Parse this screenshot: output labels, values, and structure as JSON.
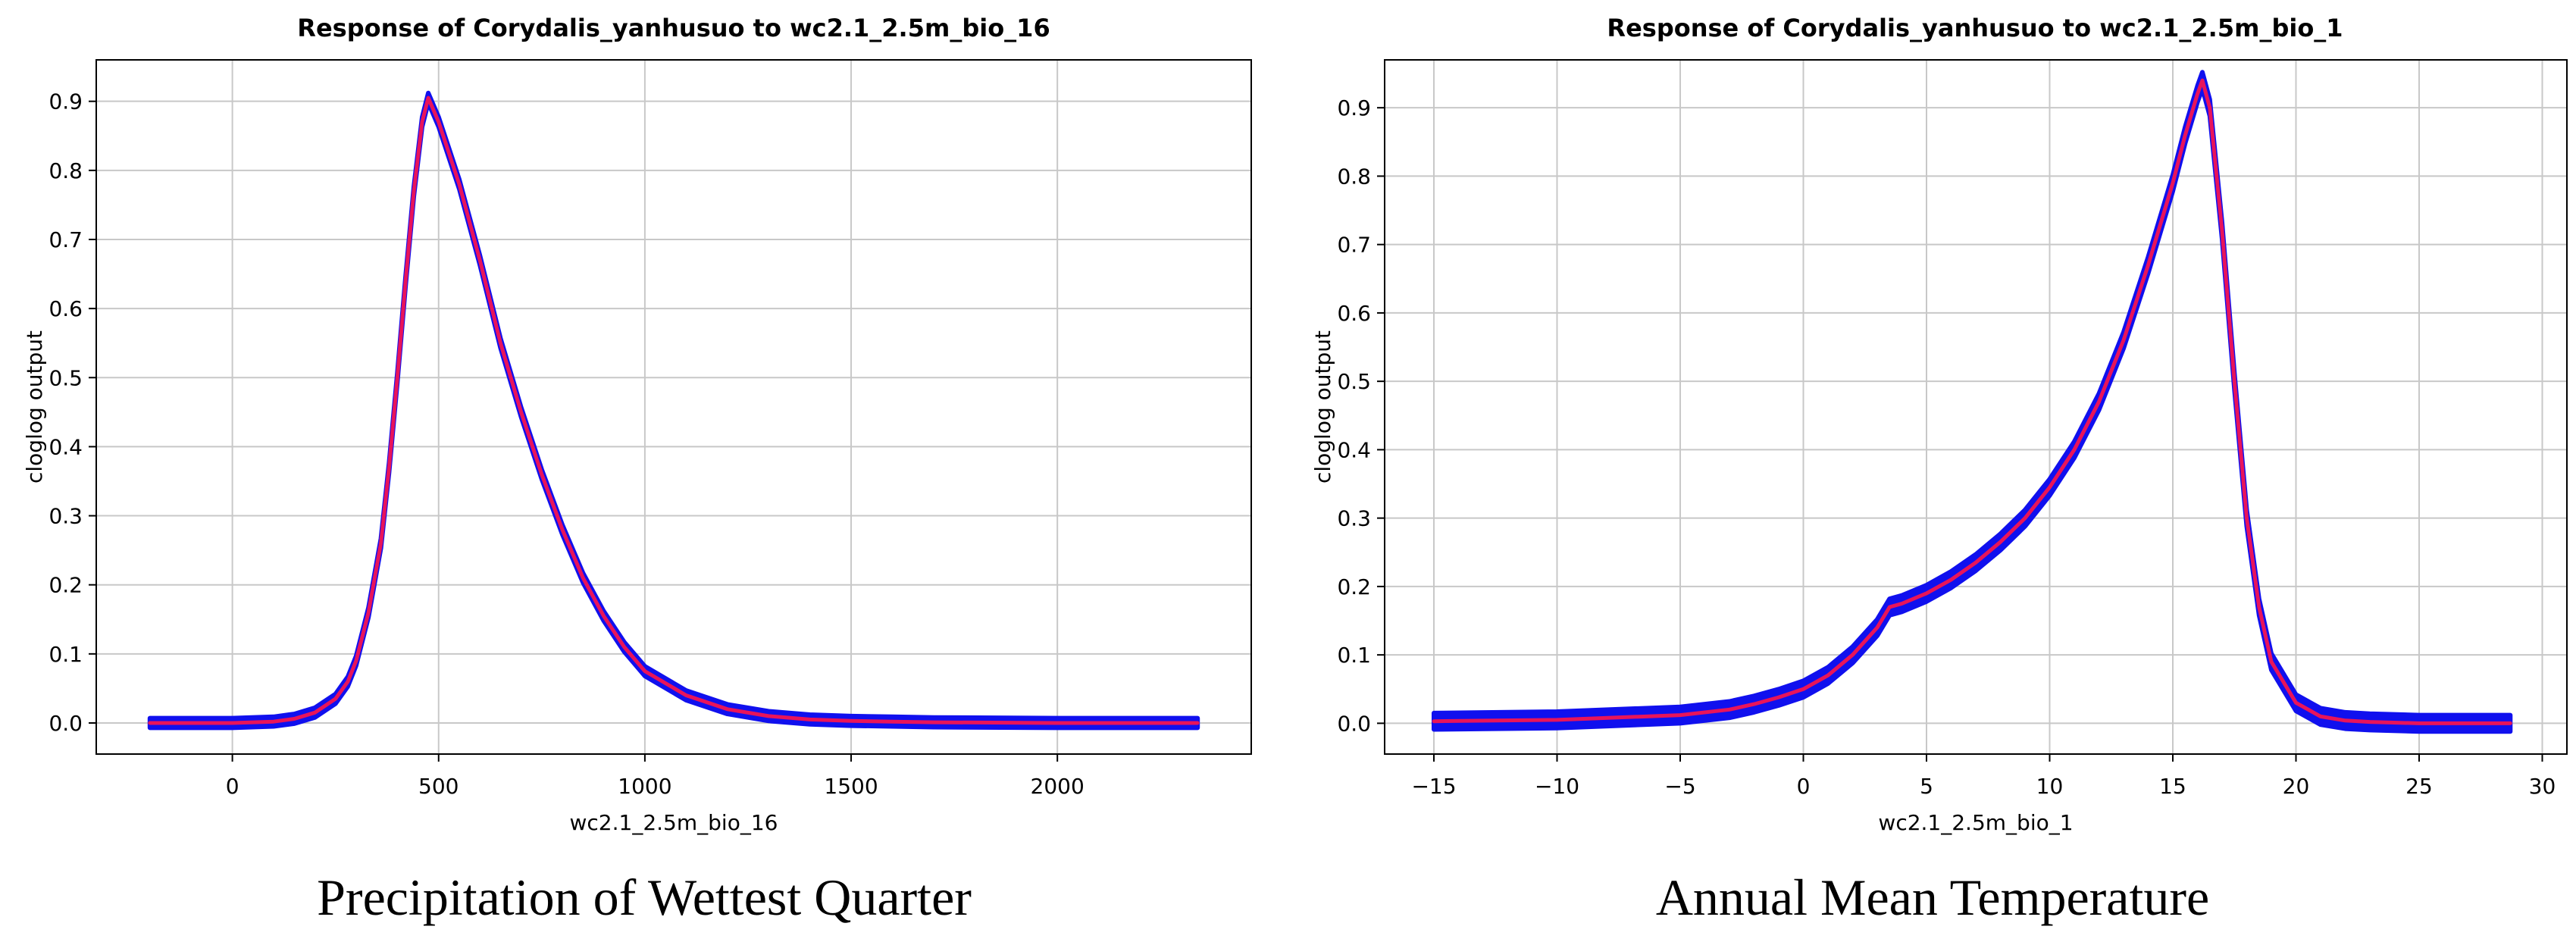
{
  "colors": {
    "band": "#1010ee",
    "mean_line": "#e8145a",
    "grid": "#c8c8c8",
    "axis": "#000000"
  },
  "captions": {
    "left": "Precipitation of Wettest Quarter",
    "right": "Annual Mean Temperature"
  },
  "chart_data": [
    {
      "type": "line",
      "title": "Response of Corydalis_yanhusuo to wc2.1_2.5m_bio_16",
      "xlabel": "wc2.1_2.5m_bio_16",
      "ylabel": "cloglog output",
      "xlim": [
        -330,
        2470
      ],
      "ylim": [
        -0.045,
        0.96
      ],
      "xticks": [
        0,
        500,
        1000,
        1500,
        2000
      ],
      "xtick_labels": [
        "0",
        "500",
        "1000",
        "1500",
        "2000"
      ],
      "yticks": [
        0.0,
        0.1,
        0.2,
        0.3,
        0.4,
        0.5,
        0.6,
        0.7,
        0.8,
        0.9
      ],
      "ytick_labels": [
        "0.0",
        "0.1",
        "0.2",
        "0.3",
        "0.4",
        "0.5",
        "0.6",
        "0.7",
        "0.8",
        "0.9"
      ],
      "grid": true,
      "band_halfwidth": 0.007,
      "series": [
        {
          "x": [
            -200,
            0,
            100,
            150,
            200,
            250,
            280,
            300,
            330,
            360,
            380,
            400,
            420,
            440,
            460,
            475,
            500,
            550,
            600,
            650,
            700,
            750,
            800,
            850,
            900,
            950,
            1000,
            1100,
            1200,
            1300,
            1400,
            1500,
            1600,
            1700,
            2000,
            2340
          ],
          "y": [
            0.0,
            0.0,
            0.002,
            0.006,
            0.015,
            0.035,
            0.06,
            0.09,
            0.16,
            0.26,
            0.37,
            0.5,
            0.64,
            0.77,
            0.87,
            0.905,
            0.87,
            0.78,
            0.67,
            0.55,
            0.45,
            0.36,
            0.28,
            0.21,
            0.155,
            0.11,
            0.075,
            0.04,
            0.02,
            0.01,
            0.005,
            0.003,
            0.002,
            0.001,
            0.0,
            0.0
          ]
        }
      ]
    },
    {
      "type": "line",
      "title": "Response of Corydalis_yanhusuo to wc2.1_2.5m_bio_1",
      "xlabel": "wc2.1_2.5m_bio_1",
      "ylabel": "cloglog output",
      "xlim": [
        -17,
        31
      ],
      "ylim": [
        -0.045,
        0.97
      ],
      "xticks": [
        -15,
        -10,
        -5,
        0,
        5,
        10,
        15,
        20,
        25,
        30
      ],
      "xtick_labels": [
        "−15",
        "−10",
        "−5",
        "0",
        "5",
        "10",
        "15",
        "20",
        "25",
        "30"
      ],
      "yticks": [
        0.0,
        0.1,
        0.2,
        0.3,
        0.4,
        0.5,
        0.6,
        0.7,
        0.8,
        0.9
      ],
      "ytick_labels": [
        "0.0",
        "0.1",
        "0.2",
        "0.3",
        "0.4",
        "0.5",
        "0.6",
        "0.7",
        "0.8",
        "0.9"
      ],
      "grid": true,
      "band_halfwidth": 0.012,
      "series": [
        {
          "x": [
            -15,
            -10,
            -5,
            -3,
            -2,
            -1,
            0,
            1,
            2,
            3,
            3.5,
            4,
            5,
            6,
            7,
            8,
            9,
            10,
            11,
            12,
            13,
            14,
            15,
            15.5,
            16,
            16.2,
            16.5,
            17,
            17.5,
            18,
            18.5,
            19,
            20,
            21,
            22,
            23,
            25,
            28.7
          ],
          "y": [
            0.003,
            0.005,
            0.012,
            0.02,
            0.028,
            0.038,
            0.05,
            0.07,
            0.1,
            0.14,
            0.17,
            0.175,
            0.19,
            0.21,
            0.235,
            0.265,
            0.3,
            0.345,
            0.4,
            0.47,
            0.56,
            0.67,
            0.79,
            0.86,
            0.92,
            0.94,
            0.9,
            0.72,
            0.5,
            0.3,
            0.17,
            0.09,
            0.03,
            0.01,
            0.004,
            0.002,
            0.0,
            0.0
          ]
        }
      ]
    }
  ]
}
